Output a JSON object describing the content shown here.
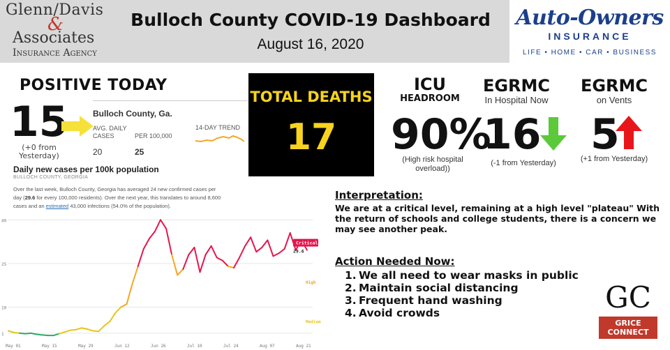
{
  "header": {
    "title": "Bulloch County COVID-19 Dashboard",
    "date": "August 16, 2020",
    "left_logo": {
      "line1": "Glenn/Davis",
      "amp": "&",
      "line2": "Associates",
      "line3": "Insurance Agency"
    },
    "right_logo": {
      "name": "Auto-Owners",
      "sub": "INSURANCE",
      "tagline": "LIFE • HOME • CAR • BUSINESS"
    }
  },
  "positive": {
    "title": "POSITIVE TODAY",
    "value": "15",
    "change": "(+0 from Yesterday)",
    "icon": "arrow-right-icon"
  },
  "county_card": {
    "name": "Bulloch County, Ga.",
    "avg_label": "AVG. DAILY CASES",
    "per_label": "PER 100,000",
    "trend_label": "14-DAY TREND",
    "avg_value": "20",
    "per_value": "25"
  },
  "deaths": {
    "title": "TOTAL DEATHS",
    "value": "17"
  },
  "icu": {
    "title": "ICU",
    "subtitle": "HEADROOM",
    "value": "90%",
    "note": "(High risk hospital overload))"
  },
  "hospital": {
    "title": "EGRMC",
    "subtitle": "In Hospital Now",
    "value": "16",
    "change": "(-1 from Yesterday)",
    "trend_icon": "arrow-down-icon",
    "trend_color": "#5cc93b"
  },
  "vents": {
    "title": "EGRMC",
    "subtitle": "on Vents",
    "value": "5",
    "change": "(+1 from Yesterday)",
    "trend_icon": "arrow-up-icon",
    "trend_color": "#e8161b"
  },
  "chart_text": {
    "heading": "Daily new cases per 100k population",
    "subheading": "BULLOCH COUNTY, GEORGIA",
    "p1": "Over the last week, Bulloch County, Georgia has averaged 24 new confirmed cases per day (",
    "p1_bold": "29.6",
    "p2": " for every 100,000 residents). Over the next year, this translates to around 8,600 cases and an ",
    "p2_link": "estimated",
    "p3": " 43,000 infections (54.0% of the population)."
  },
  "chart_data": {
    "type": "line",
    "title": "Daily new cases per 100k population",
    "x_ticks": [
      "May 01",
      "May 15",
      "May 29",
      "Jun 12",
      "Jun 26",
      "Jul 10",
      "Jul 24",
      "Aug 07",
      "Aug 21"
    ],
    "y_ticks": [
      1,
      10,
      25,
      40
    ],
    "y_range": [
      0,
      42
    ],
    "zone_labels": [
      "Critical",
      "High",
      "Medium"
    ],
    "latest_value": "29.6",
    "series": [
      {
        "x": [
          0,
          2,
          4,
          6,
          8,
          10,
          12,
          14,
          16,
          18,
          20,
          22,
          24,
          26,
          28,
          30,
          32,
          34,
          36,
          38,
          40,
          42,
          44,
          46,
          48,
          50,
          52,
          54,
          56,
          58,
          60,
          62,
          64,
          66,
          68,
          70,
          72,
          74,
          76,
          78,
          80,
          82,
          84,
          86,
          88,
          90,
          92,
          94,
          96,
          98,
          100,
          102,
          104,
          106
        ],
        "values": [
          1.8,
          1.2,
          1.0,
          0.8,
          1.0,
          0.6,
          0.4,
          0.2,
          0.2,
          0.8,
          1.4,
          2.0,
          2.2,
          2.8,
          2.4,
          1.8,
          1.6,
          3.5,
          5.0,
          8.0,
          10.0,
          11.0,
          18.0,
          24.0,
          30.0,
          33.5,
          36.0,
          40.0,
          37.0,
          28.0,
          21.0,
          23.0,
          28.0,
          30.5,
          22.0,
          28.0,
          31.0,
          27.0,
          26.0,
          24.0,
          23.5,
          27.0,
          31.0,
          34.0,
          29.0,
          30.5,
          33.0,
          27.5,
          28.5,
          30.0,
          35.5,
          29.6,
          33.0,
          29.6
        ]
      }
    ]
  },
  "interpretation": {
    "heading": "Interpretation:",
    "text": "We are at a critical level, remaining at a high level \"plateau\" With the return of schools and college students, there is a concern we may see another peak."
  },
  "actions": {
    "heading": "Action Needed Now:",
    "items": [
      {
        "num": "1.",
        "text": "We all need to wear masks in public"
      },
      {
        "num": "2.",
        "text": "Maintain social distancing"
      },
      {
        "num": "3.",
        "text": "Frequent hand washing"
      },
      {
        "num": "4.",
        "text": "Avoid crowds"
      }
    ]
  },
  "brand": {
    "mark": "GC",
    "line1": "GRICE",
    "line2": "CONNECT"
  },
  "colors": {
    "yellow": "#f7d31e",
    "arrow_yellow": "#f5e13a",
    "critical": "#e3164c",
    "high": "#f5a623",
    "medium": "#e6c619",
    "low": "#2ea86a",
    "ao_blue": "#1c3f8a"
  }
}
